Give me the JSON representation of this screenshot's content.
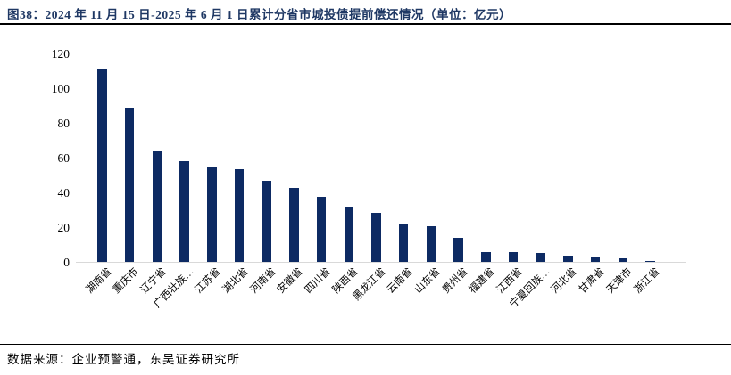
{
  "figure": {
    "title": "图38：2024 年 11 月 15 日-2025 年 6 月 1 日累计分省市城投债提前偿还情况（单位：亿元）",
    "source": "数据来源：企业预警通，东吴证券研究所"
  },
  "colors": {
    "bar": "#0d2a63",
    "title": "#1f3864",
    "rule": "#000000",
    "axis_line": "#d9d9d9"
  },
  "chart_data": {
    "type": "bar",
    "title": "2024年11月15日-2025年6月1日累计分省市城投债提前偿还情况",
    "unit": "亿元",
    "categories": [
      "湖南省",
      "重庆市",
      "辽宁省",
      "广西壮族…",
      "江苏省",
      "湖北省",
      "河南省",
      "安徽省",
      "四川省",
      "陕西省",
      "黑龙江省",
      "云南省",
      "山东省",
      "贵州省",
      "福建省",
      "江西省",
      "宁夏回族…",
      "河北省",
      "甘肃省",
      "天津市",
      "浙江省"
    ],
    "values": [
      111,
      89,
      64.5,
      58,
      55,
      53.5,
      47,
      42.5,
      37.5,
      32,
      28.5,
      22,
      20.5,
      14,
      5.5,
      5.5,
      5,
      3.5,
      2.5,
      2,
      0.7
    ],
    "xlabel": "",
    "ylabel": "",
    "ylim": [
      0,
      120
    ],
    "yticks": [
      0,
      20,
      40,
      60,
      80,
      100,
      120
    ],
    "grid": false,
    "legend": "none"
  }
}
